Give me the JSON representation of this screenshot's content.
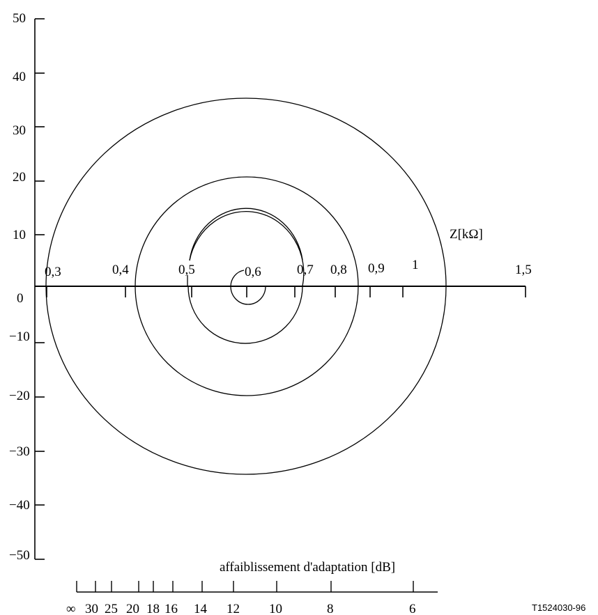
{
  "figure_id": "T1524030-96",
  "y_axis": {
    "ticks": [
      "50",
      "40",
      "30",
      "20",
      "10",
      "0",
      "−10",
      "−20",
      "−30",
      "−40",
      "−50"
    ]
  },
  "z_axis": {
    "label": "Z[kΩ]",
    "ticks": [
      "0,3",
      "0,4",
      "0,5",
      "0,6",
      "0,7",
      "0,8",
      "0,9",
      "1",
      "1,5"
    ]
  },
  "attenuation_scale": {
    "label": "affaiblissement d'adaptation [dB]",
    "ticks": [
      "∞",
      "30",
      "25",
      "20",
      "18",
      "16",
      "14",
      "12",
      "10",
      "8",
      "6"
    ]
  },
  "circles": [
    {
      "name": "circle-6db",
      "center_z": "0,6",
      "crosses_z": [
        "0,3",
        "1,2"
      ]
    },
    {
      "name": "circle-10db",
      "center_z": "0,6",
      "crosses_z": [
        "0,4",
        "0,85"
      ]
    },
    {
      "name": "circle-14db",
      "center_z": "0,6",
      "crosses_z": [
        "0,5",
        "0,7"
      ]
    },
    {
      "name": "circle-20db",
      "center_z": "0,6",
      "crosses_z": [
        "0,55",
        "0,65"
      ]
    }
  ],
  "colors": {
    "line": "#000000",
    "background": "#ffffff"
  }
}
